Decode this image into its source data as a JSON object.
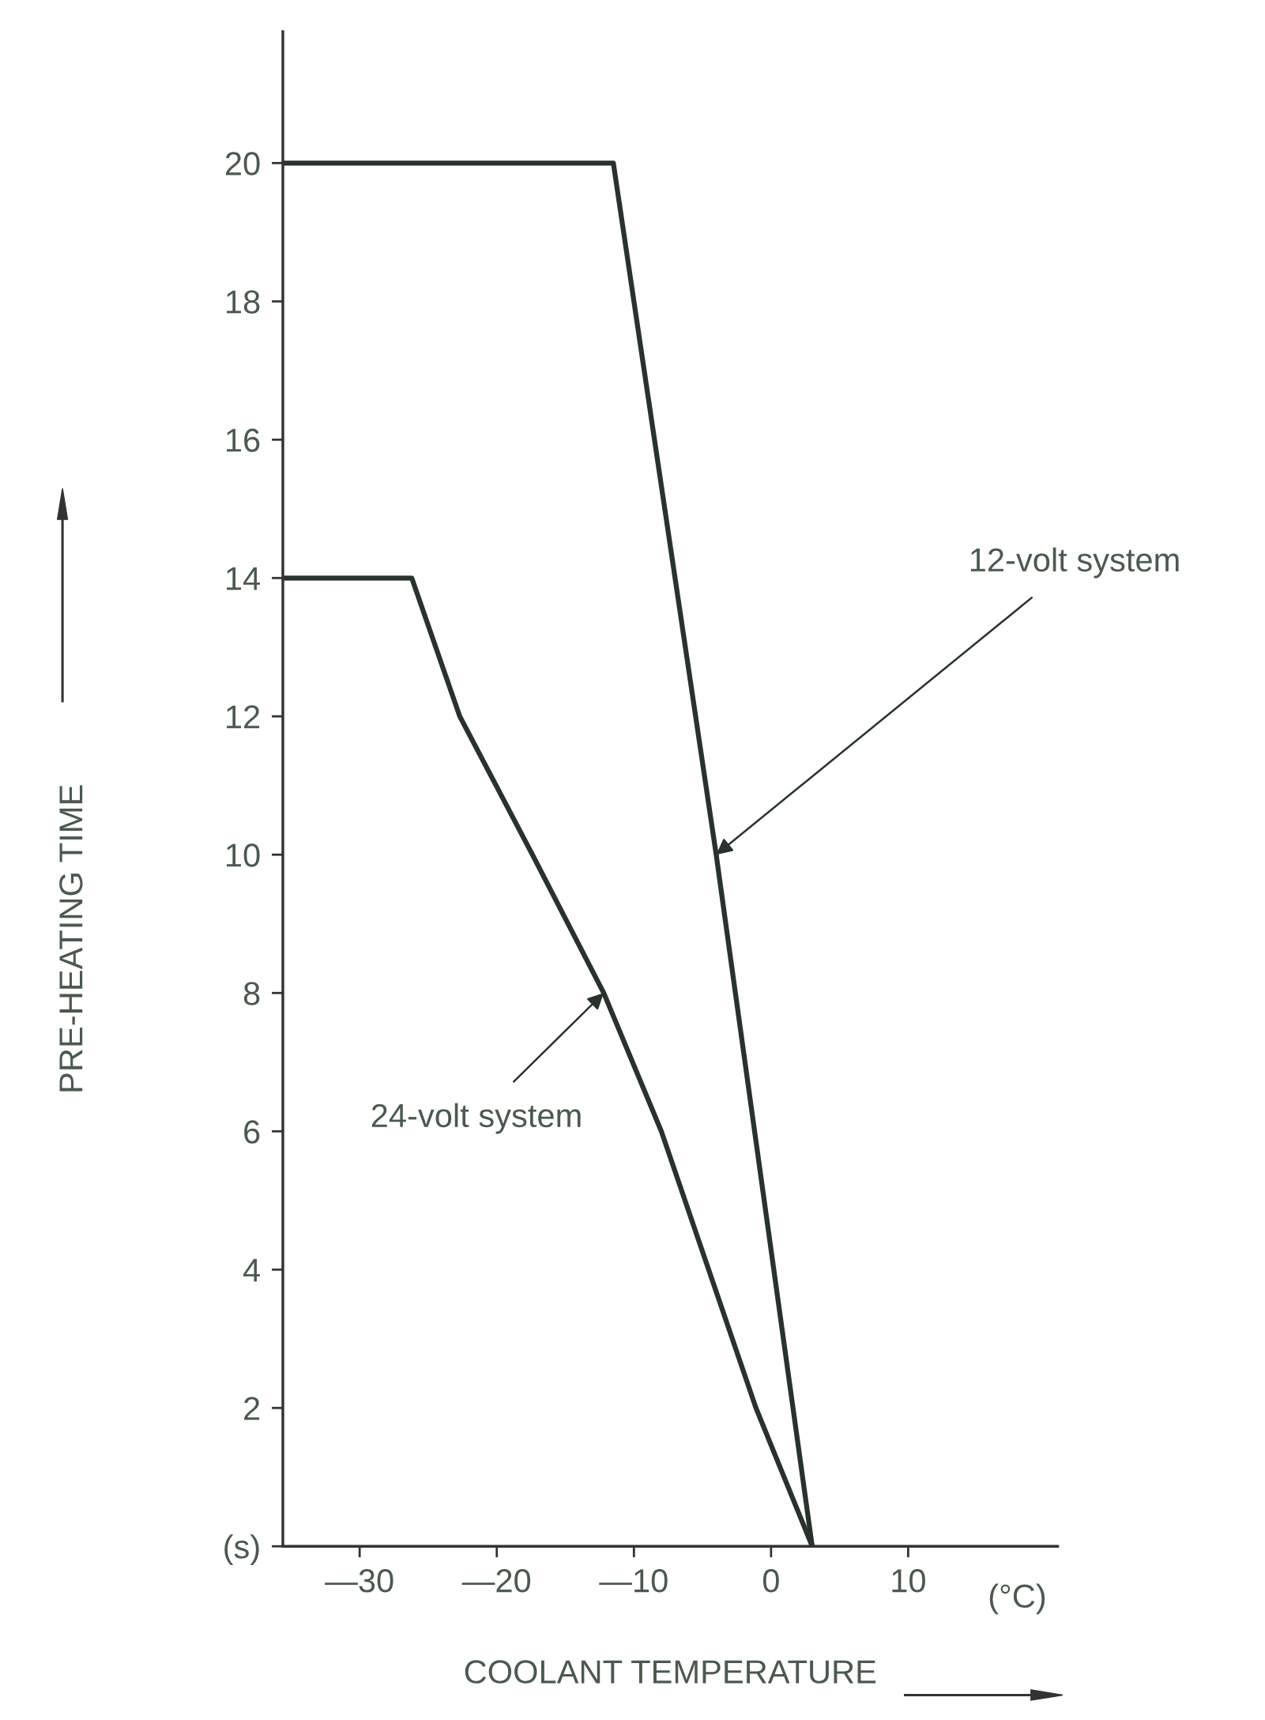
{
  "chart_data": {
    "type": "line",
    "xlabel": "COOLANT TEMPERATURE",
    "ylabel": "PRE-HEATING TIME",
    "xlim": [
      -35.6,
      20.9
    ],
    "ylim": [
      0,
      21.9
    ],
    "xticks": [
      {
        "value": -30,
        "label": "—30"
      },
      {
        "value": -20,
        "label": "—20"
      },
      {
        "value": -10,
        "label": "—10"
      },
      0,
      10
    ],
    "yticks": [
      {
        "value": 0,
        "label": "(s)"
      },
      2,
      4,
      6,
      8,
      10,
      12,
      14,
      16,
      18,
      20
    ],
    "grid": false,
    "legend": false,
    "marker": "none",
    "line_style": "solid",
    "series": [
      {
        "color": "#27332b",
        "x": [
          -35.6,
          -11.5,
          -4,
          3.0
        ],
        "values": [
          20,
          20,
          10,
          0
        ]
      },
      {
        "color": "#27332b",
        "x": [
          -35.6,
          -26.2,
          -22.7,
          -17.4,
          -12.2,
          -8.0,
          -1.1,
          3.0
        ],
        "values": [
          14,
          14,
          12,
          10,
          8,
          6,
          2,
          0
        ]
      }
    ],
    "annotations": [
      {
        "text": "12-volt system",
        "x": -4,
        "y": 10
      },
      {
        "text": "24-volt system",
        "x": -12.2,
        "y": 8
      },
      "(°C)"
    ]
  }
}
